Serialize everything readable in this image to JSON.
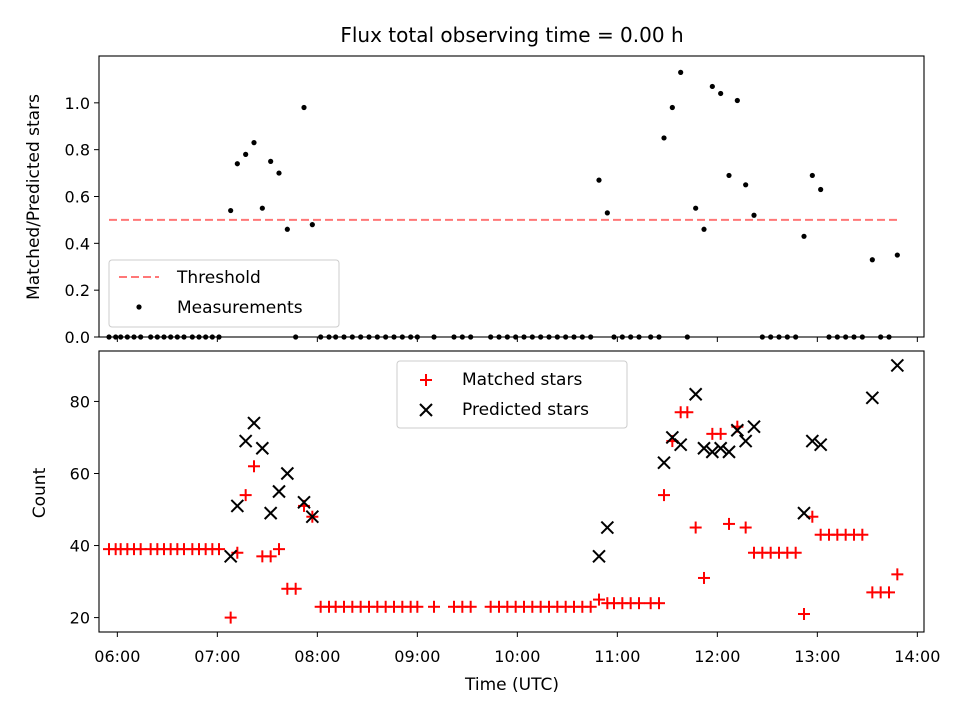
{
  "chart_data": [
    {
      "type": "scatter",
      "title": "Flux total observing time = 0.00 h",
      "xlabel": "",
      "ylabel": "Matched/Predicted stars",
      "xlim": [
        "05:49",
        "14:04"
      ],
      "ylim": [
        0,
        1.2
      ],
      "yticks": [
        0.0,
        0.2,
        0.4,
        0.6,
        0.8,
        1.0
      ],
      "ytick_labels": [
        "0.0",
        "0.2",
        "0.4",
        "0.6",
        "0.8",
        "1.0"
      ],
      "grid": false,
      "legend_position": "lower-left",
      "threshold": {
        "name": "Threshold",
        "value": 0.5,
        "x_start": "05:55",
        "x_end": "13:50",
        "color": "#ff7777",
        "style": "dashed"
      },
      "series": [
        {
          "name": "Measurements",
          "marker": "dot",
          "color": "#000000",
          "points": [
            [
              "05:55",
              0
            ],
            [
              "05:59",
              0
            ],
            [
              "06:02",
              0
            ],
            [
              "06:06",
              0
            ],
            [
              "06:10",
              0
            ],
            [
              "06:14",
              0
            ],
            [
              "06:20",
              0
            ],
            [
              "06:24",
              0
            ],
            [
              "06:28",
              0
            ],
            [
              "06:32",
              0
            ],
            [
              "06:36",
              0
            ],
            [
              "06:40",
              0
            ],
            [
              "06:45",
              0
            ],
            [
              "06:49",
              0
            ],
            [
              "06:53",
              0
            ],
            [
              "06:57",
              0
            ],
            [
              "07:01",
              0
            ],
            [
              "07:08",
              0.54
            ],
            [
              "07:12",
              0.74
            ],
            [
              "07:17",
              0.78
            ],
            [
              "07:22",
              0.83
            ],
            [
              "07:27",
              0.55
            ],
            [
              "07:32",
              0.75
            ],
            [
              "07:37",
              0.7
            ],
            [
              "07:42",
              0.46
            ],
            [
              "07:47",
              0.0
            ],
            [
              "07:52",
              0.98
            ],
            [
              "07:57",
              0.48
            ],
            [
              "08:02",
              0
            ],
            [
              "08:07",
              0
            ],
            [
              "08:11",
              0
            ],
            [
              "08:16",
              0
            ],
            [
              "08:21",
              0
            ],
            [
              "08:26",
              0
            ],
            [
              "08:31",
              0
            ],
            [
              "08:36",
              0
            ],
            [
              "08:41",
              0
            ],
            [
              "08:46",
              0
            ],
            [
              "08:51",
              0
            ],
            [
              "08:56",
              0
            ],
            [
              "09:00",
              0
            ],
            [
              "09:10",
              0
            ],
            [
              "09:22",
              0
            ],
            [
              "09:27",
              0
            ],
            [
              "09:32",
              0
            ],
            [
              "09:44",
              0
            ],
            [
              "09:49",
              0
            ],
            [
              "09:54",
              0
            ],
            [
              "09:59",
              0
            ],
            [
              "10:04",
              0
            ],
            [
              "10:09",
              0
            ],
            [
              "10:14",
              0
            ],
            [
              "10:19",
              0
            ],
            [
              "10:24",
              0
            ],
            [
              "10:29",
              0
            ],
            [
              "10:34",
              0
            ],
            [
              "10:39",
              0
            ],
            [
              "10:44",
              0
            ],
            [
              "10:49",
              0.67
            ],
            [
              "10:54",
              0.53
            ],
            [
              "10:58",
              0
            ],
            [
              "11:03",
              0
            ],
            [
              "11:08",
              0
            ],
            [
              "11:13",
              0
            ],
            [
              "11:20",
              0
            ],
            [
              "11:25",
              0
            ],
            [
              "11:28",
              0.85
            ],
            [
              "11:33",
              0.98
            ],
            [
              "11:38",
              1.13
            ],
            [
              "11:42",
              0.0
            ],
            [
              "11:47",
              0.55
            ],
            [
              "11:52",
              0.46
            ],
            [
              "11:57",
              1.07
            ],
            [
              "12:02",
              1.04
            ],
            [
              "12:07",
              0.69
            ],
            [
              "12:12",
              1.01
            ],
            [
              "12:17",
              0.65
            ],
            [
              "12:22",
              0.52
            ],
            [
              "12:27",
              0
            ],
            [
              "12:32",
              0
            ],
            [
              "12:37",
              0
            ],
            [
              "12:42",
              0
            ],
            [
              "12:47",
              0
            ],
            [
              "12:52",
              0.43
            ],
            [
              "12:57",
              0.69
            ],
            [
              "13:02",
              0.63
            ],
            [
              "13:07",
              0
            ],
            [
              "13:12",
              0
            ],
            [
              "13:17",
              0
            ],
            [
              "13:22",
              0
            ],
            [
              "13:27",
              0
            ],
            [
              "13:33",
              0.33
            ],
            [
              "13:38",
              0
            ],
            [
              "13:43",
              0
            ],
            [
              "13:48",
              0.35
            ]
          ]
        }
      ]
    },
    {
      "type": "scatter",
      "title": "",
      "xlabel": "Time (UTC)",
      "ylabel": "Count",
      "xlim": [
        "05:49",
        "14:04"
      ],
      "ylim": [
        16,
        94
      ],
      "xticks": [
        "06:00",
        "07:00",
        "08:00",
        "09:00",
        "10:00",
        "11:00",
        "12:00",
        "13:00",
        "14:00"
      ],
      "yticks": [
        20,
        40,
        60,
        80
      ],
      "ytick_labels": [
        "20",
        "40",
        "60",
        "80"
      ],
      "grid": false,
      "legend_position": "upper-center",
      "series": [
        {
          "name": "Matched stars",
          "marker": "plus",
          "color": "#ff0000",
          "points": [
            [
              "05:55",
              39
            ],
            [
              "05:59",
              39
            ],
            [
              "06:02",
              39
            ],
            [
              "06:06",
              39
            ],
            [
              "06:10",
              39
            ],
            [
              "06:14",
              39
            ],
            [
              "06:20",
              39
            ],
            [
              "06:24",
              39
            ],
            [
              "06:28",
              39
            ],
            [
              "06:32",
              39
            ],
            [
              "06:36",
              39
            ],
            [
              "06:40",
              39
            ],
            [
              "06:45",
              39
            ],
            [
              "06:49",
              39
            ],
            [
              "06:53",
              39
            ],
            [
              "06:57",
              39
            ],
            [
              "07:01",
              39
            ],
            [
              "07:08",
              20
            ],
            [
              "07:12",
              38
            ],
            [
              "07:17",
              54
            ],
            [
              "07:22",
              62
            ],
            [
              "07:27",
              37
            ],
            [
              "07:32",
              37
            ],
            [
              "07:37",
              39
            ],
            [
              "07:42",
              28
            ],
            [
              "07:47",
              28
            ],
            [
              "07:52",
              51
            ],
            [
              "07:57",
              48
            ],
            [
              "08:02",
              23
            ],
            [
              "08:07",
              23
            ],
            [
              "08:11",
              23
            ],
            [
              "08:16",
              23
            ],
            [
              "08:21",
              23
            ],
            [
              "08:26",
              23
            ],
            [
              "08:31",
              23
            ],
            [
              "08:36",
              23
            ],
            [
              "08:41",
              23
            ],
            [
              "08:46",
              23
            ],
            [
              "08:51",
              23
            ],
            [
              "08:56",
              23
            ],
            [
              "09:00",
              23
            ],
            [
              "09:10",
              23
            ],
            [
              "09:22",
              23
            ],
            [
              "09:27",
              23
            ],
            [
              "09:32",
              23
            ],
            [
              "09:44",
              23
            ],
            [
              "09:49",
              23
            ],
            [
              "09:54",
              23
            ],
            [
              "09:59",
              23
            ],
            [
              "10:04",
              23
            ],
            [
              "10:09",
              23
            ],
            [
              "10:14",
              23
            ],
            [
              "10:19",
              23
            ],
            [
              "10:24",
              23
            ],
            [
              "10:29",
              23
            ],
            [
              "10:34",
              23
            ],
            [
              "10:39",
              23
            ],
            [
              "10:44",
              23
            ],
            [
              "10:49",
              25
            ],
            [
              "10:54",
              24
            ],
            [
              "10:58",
              24
            ],
            [
              "11:03",
              24
            ],
            [
              "11:08",
              24
            ],
            [
              "11:13",
              24
            ],
            [
              "11:20",
              24
            ],
            [
              "11:25",
              24
            ],
            [
              "11:28",
              54
            ],
            [
              "11:33",
              69
            ],
            [
              "11:38",
              77
            ],
            [
              "11:42",
              77
            ],
            [
              "11:47",
              45
            ],
            [
              "11:52",
              31
            ],
            [
              "11:57",
              71
            ],
            [
              "12:02",
              71
            ],
            [
              "12:07",
              46
            ],
            [
              "12:12",
              73
            ],
            [
              "12:17",
              45
            ],
            [
              "12:22",
              38
            ],
            [
              "12:27",
              38
            ],
            [
              "12:32",
              38
            ],
            [
              "12:37",
              38
            ],
            [
              "12:42",
              38
            ],
            [
              "12:47",
              38
            ],
            [
              "12:52",
              21
            ],
            [
              "12:57",
              48
            ],
            [
              "13:02",
              43
            ],
            [
              "13:07",
              43
            ],
            [
              "13:12",
              43
            ],
            [
              "13:17",
              43
            ],
            [
              "13:22",
              43
            ],
            [
              "13:27",
              43
            ],
            [
              "13:33",
              27
            ],
            [
              "13:38",
              27
            ],
            [
              "13:43",
              27
            ],
            [
              "13:48",
              32
            ]
          ]
        },
        {
          "name": "Predicted stars",
          "marker": "x",
          "color": "#000000",
          "points": [
            [
              "07:08",
              37
            ],
            [
              "07:12",
              51
            ],
            [
              "07:17",
              69
            ],
            [
              "07:22",
              74
            ],
            [
              "07:27",
              67
            ],
            [
              "07:32",
              49
            ],
            [
              "07:37",
              55
            ],
            [
              "07:42",
              60
            ],
            [
              "07:52",
              52
            ],
            [
              "07:57",
              48
            ],
            [
              "10:49",
              37
            ],
            [
              "10:54",
              45
            ],
            [
              "11:28",
              63
            ],
            [
              "11:33",
              70
            ],
            [
              "11:38",
              68
            ],
            [
              "11:47",
              82
            ],
            [
              "11:52",
              67
            ],
            [
              "11:57",
              66
            ],
            [
              "12:02",
              67
            ],
            [
              "12:07",
              66
            ],
            [
              "12:12",
              72
            ],
            [
              "12:17",
              69
            ],
            [
              "12:22",
              73
            ],
            [
              "12:52",
              49
            ],
            [
              "12:57",
              69
            ],
            [
              "13:02",
              68
            ],
            [
              "13:33",
              81
            ],
            [
              "13:48",
              90
            ]
          ]
        }
      ]
    }
  ]
}
